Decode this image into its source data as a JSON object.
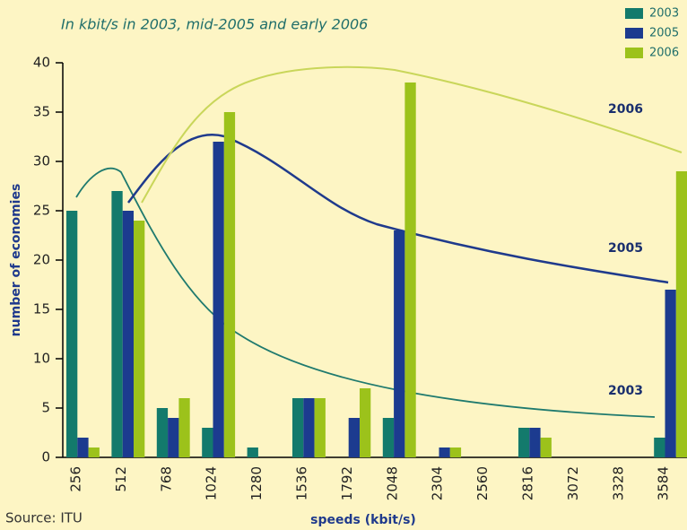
{
  "chart_data": {
    "type": "bar",
    "title": "In kbit/s in 2003, mid-2005 and early 2006",
    "y_label": "number of economies",
    "x_label": "speeds (kbit/s)",
    "source": "Source: ITU",
    "annotations": [
      "2003",
      "2005",
      "2006"
    ],
    "categories": [
      "256",
      "512",
      "768",
      "1024",
      "1280",
      "1536",
      "1792",
      "2048",
      "2304",
      "2560",
      "2816",
      "3072",
      "3328",
      "3584"
    ],
    "series": [
      {
        "name": "2003",
        "color": "#137a6c",
        "values": [
          25,
          27,
          5,
          3,
          1,
          6,
          0,
          4,
          0,
          0,
          3,
          0,
          0,
          2
        ]
      },
      {
        "name": "2005",
        "color": "#1c3b8f",
        "values": [
          2,
          25,
          4,
          32,
          0,
          6,
          4,
          23,
          1,
          0,
          3,
          0,
          0,
          17
        ]
      },
      {
        "name": "2006",
        "color": "#9cc21b",
        "values": [
          1,
          24,
          6,
          35,
          0,
          6,
          7,
          38,
          1,
          0,
          2,
          0,
          0,
          29
        ]
      }
    ],
    "ylim": [
      0,
      40
    ],
    "yticks": [
      0,
      5,
      10,
      15,
      20,
      25,
      30,
      35,
      40
    ],
    "legend": "top-right"
  }
}
